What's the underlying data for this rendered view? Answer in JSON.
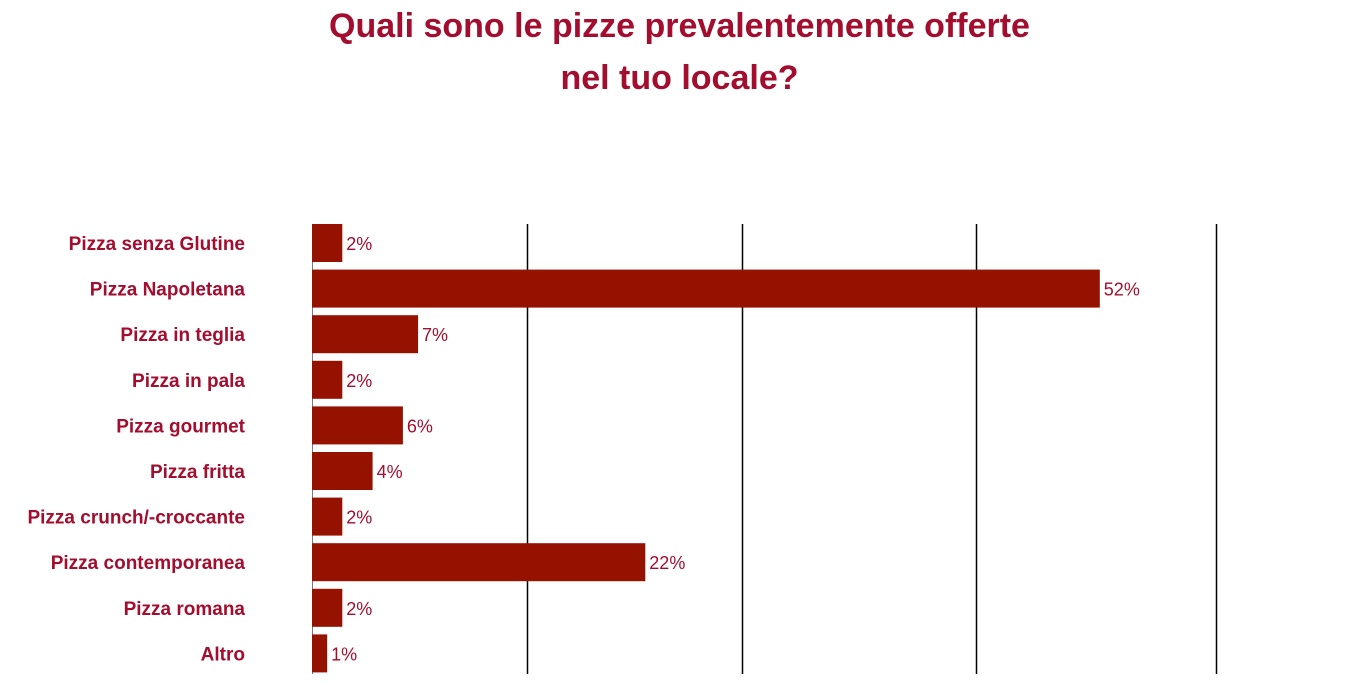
{
  "chart_data": {
    "type": "bar",
    "orientation": "horizontal",
    "title": [
      "Quali sono le pizze prevalentemente offerte",
      "nel tuo locale?"
    ],
    "categories": [
      "Pizza senza Glutine",
      "Pizza Napoletana",
      "Pizza in teglia",
      "Pizza in pala",
      "Pizza gourmet",
      "Pizza fritta",
      "Pizza crunch/-croccante",
      "Pizza contemporanea",
      "Pizza romana",
      "Altro"
    ],
    "values": [
      2,
      52,
      7,
      2,
      6,
      4,
      2,
      22,
      2,
      1
    ],
    "value_labels": [
      "2%",
      "52%",
      "7%",
      "2%",
      "6%",
      "4%",
      "2%",
      "22%",
      "2%",
      "1%"
    ],
    "unit": "%",
    "xlim": [
      0,
      60
    ],
    "grid_x": true,
    "bar_color": "#951100",
    "text_color": "#a30d2e"
  }
}
